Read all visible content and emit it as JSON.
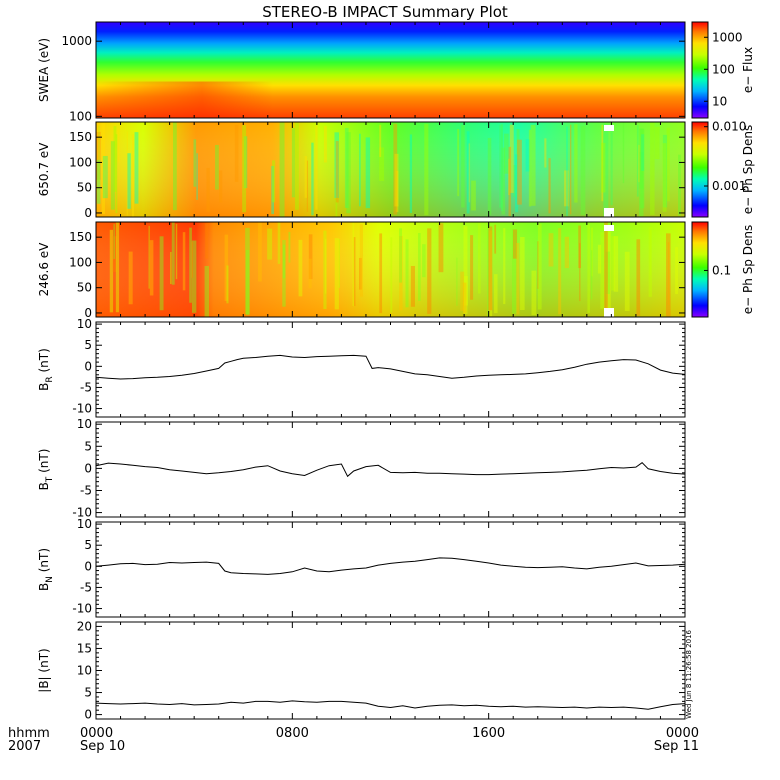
{
  "title": "STEREO-B IMPACT Summary Plot",
  "footer": {
    "hhmm": "hhmm",
    "year": "2007"
  },
  "timestamp": "Wed Jun  8 11:26:58 2016",
  "x_ticks": [
    {
      "hour": 0,
      "time": "0000",
      "date": "Sep 10"
    },
    {
      "hour": 8,
      "time": "0800",
      "date": ""
    },
    {
      "hour": 16,
      "time": "1600",
      "date": ""
    },
    {
      "hour": 24,
      "time": "0000",
      "date": "Sep 11"
    }
  ],
  "chart_data": [
    {
      "type": "heatmap",
      "id": "swea",
      "ylabel": "SWEA (eV)",
      "ylog": true,
      "ylim": [
        95,
        1800
      ],
      "yticks": [
        {
          "v": 100,
          "t": "100"
        },
        {
          "v": 1000,
          "t": "1000"
        }
      ],
      "colorbar": {
        "label": "e− Flux",
        "log": true,
        "range": [
          3,
          3000
        ],
        "ticks": [
          {
            "v": 10,
            "t": "10"
          },
          {
            "v": 100,
            "t": "100"
          },
          {
            "v": 1000,
            "t": "1000"
          }
        ]
      }
    },
    {
      "type": "heatmap",
      "id": "pad650",
      "ylabel": "650.7 eV",
      "ylim": [
        -8,
        180
      ],
      "yticks": [
        {
          "v": 0,
          "t": "0"
        },
        {
          "v": 50,
          "t": "50"
        },
        {
          "v": 100,
          "t": "100"
        },
        {
          "v": 150,
          "t": "150"
        }
      ],
      "colorbar": {
        "label": "e− Ph Sp Dens",
        "log": true,
        "range": [
          0.0003,
          0.012
        ],
        "ticks": [
          {
            "v": 0.001,
            "t": "0.001"
          },
          {
            "v": 0.01,
            "t": "0.010"
          }
        ]
      }
    },
    {
      "type": "heatmap",
      "id": "pad246",
      "ylabel": "246.6 eV",
      "ylim": [
        -8,
        180
      ],
      "yticks": [
        {
          "v": 0,
          "t": "0"
        },
        {
          "v": 50,
          "t": "50"
        },
        {
          "v": 100,
          "t": "100"
        },
        {
          "v": 150,
          "t": "150"
        }
      ],
      "colorbar": {
        "label": "e− Ph Sp Dens",
        "log": true,
        "range": [
          0.03,
          0.35
        ],
        "ticks": [
          {
            "v": 0.1,
            "t": "0.1"
          }
        ]
      }
    },
    {
      "type": "line",
      "id": "br",
      "ylabel": {
        "main": "B",
        "sub": "R",
        "unit": " (nT)"
      },
      "ylim": [
        -12,
        10.5
      ],
      "yticks": [
        -10,
        -5,
        0,
        5,
        10
      ],
      "x": [
        0,
        0.5,
        1,
        1.5,
        2,
        2.5,
        3,
        3.5,
        4,
        4.5,
        5,
        5.25,
        5.5,
        5.75,
        6,
        6.5,
        7,
        7.5,
        8,
        8.5,
        9,
        9.5,
        10,
        10.5,
        11,
        11.25,
        11.5,
        12,
        12.5,
        13,
        13.5,
        14,
        14.5,
        15,
        15.5,
        16,
        16.5,
        17,
        17.5,
        18,
        18.5,
        19,
        19.5,
        20,
        20.5,
        21,
        21.5,
        22,
        22.5,
        23,
        23.5,
        24
      ],
      "values": [
        -2.6,
        -2.8,
        -3.0,
        -2.9,
        -2.7,
        -2.6,
        -2.4,
        -2.1,
        -1.7,
        -1.1,
        -0.5,
        0.8,
        1.2,
        1.6,
        1.9,
        2.1,
        2.4,
        2.6,
        2.2,
        2.1,
        2.3,
        2.4,
        2.5,
        2.6,
        2.4,
        -0.5,
        -0.3,
        -0.6,
        -1.2,
        -1.8,
        -2.0,
        -2.4,
        -2.8,
        -2.6,
        -2.3,
        -2.1,
        -2.0,
        -1.9,
        -1.8,
        -1.5,
        -1.2,
        -0.8,
        -0.2,
        0.5,
        1.0,
        1.3,
        1.6,
        1.5,
        0.6,
        -0.9,
        -1.6,
        -1.9
      ]
    },
    {
      "type": "line",
      "id": "bt",
      "ylabel": {
        "main": "B",
        "sub": "T",
        "unit": " (nT)"
      },
      "ylim": [
        -11,
        10.5
      ],
      "yticks": [
        -10,
        -5,
        0,
        5,
        10
      ],
      "x": [
        0,
        0.5,
        1,
        1.5,
        2,
        2.5,
        3,
        3.5,
        4,
        4.5,
        5,
        5.5,
        6,
        6.5,
        7,
        7.5,
        8,
        8.5,
        9,
        9.5,
        10,
        10.25,
        10.5,
        11,
        11.5,
        12,
        12.5,
        13,
        13.5,
        14,
        14.5,
        15,
        15.5,
        16,
        16.5,
        17,
        17.5,
        18,
        18.5,
        19,
        19.5,
        20,
        20.5,
        21,
        21.5,
        22,
        22.25,
        22.5,
        23,
        23.5,
        24
      ],
      "values": [
        0.6,
        1.2,
        1.0,
        0.7,
        0.4,
        0.2,
        -0.3,
        -0.6,
        -0.9,
        -1.2,
        -1.0,
        -0.7,
        -0.3,
        0.3,
        0.6,
        -0.6,
        -1.2,
        -1.6,
        -0.4,
        0.6,
        1.0,
        -1.8,
        -0.6,
        0.4,
        0.7,
        -0.9,
        -1.0,
        -0.9,
        -1.1,
        -1.1,
        -1.2,
        -1.3,
        -1.4,
        -1.4,
        -1.3,
        -1.2,
        -1.1,
        -1.0,
        -0.9,
        -0.8,
        -0.6,
        -0.4,
        -0.1,
        0.2,
        0.1,
        0.3,
        1.3,
        -0.1,
        -0.7,
        -1.1,
        -1.3
      ]
    },
    {
      "type": "line",
      "id": "bn",
      "ylabel": {
        "main": "B",
        "sub": "N",
        "unit": " (nT)"
      },
      "ylim": [
        -12,
        10.5
      ],
      "yticks": [
        -10,
        -5,
        0,
        5,
        10
      ],
      "x": [
        0,
        0.5,
        1,
        1.5,
        2,
        2.5,
        3,
        3.5,
        4,
        4.5,
        5,
        5.25,
        5.5,
        6,
        6.5,
        7,
        7.5,
        8,
        8.5,
        9,
        9.5,
        10,
        10.5,
        11,
        11.5,
        12,
        12.5,
        13,
        13.5,
        14,
        14.5,
        15,
        15.5,
        16,
        16.5,
        17,
        17.5,
        18,
        18.5,
        19,
        19.5,
        20,
        20.5,
        21,
        21.5,
        22,
        22.5,
        23,
        23.5,
        24
      ],
      "values": [
        0.0,
        0.3,
        0.6,
        0.7,
        0.4,
        0.5,
        0.9,
        0.8,
        0.9,
        1.0,
        0.7,
        -1.1,
        -1.5,
        -1.7,
        -1.8,
        -1.9,
        -1.7,
        -1.3,
        -0.4,
        -1.1,
        -1.3,
        -0.9,
        -0.6,
        -0.4,
        0.3,
        0.7,
        1.0,
        1.2,
        1.6,
        2.0,
        1.9,
        1.6,
        1.2,
        0.8,
        0.3,
        0.0,
        -0.2,
        -0.3,
        -0.2,
        -0.1,
        -0.4,
        -0.6,
        -0.2,
        0.0,
        0.4,
        0.8,
        0.1,
        0.2,
        0.3,
        0.5
      ]
    },
    {
      "type": "line",
      "id": "bmag",
      "ylabel": {
        "main": "|B|",
        "sub": "",
        "unit": " (nT)"
      },
      "ylim": [
        -1,
        21
      ],
      "yticks": [
        0,
        5,
        10,
        15,
        20
      ],
      "x": [
        0,
        0.5,
        1,
        1.5,
        2,
        2.5,
        3,
        3.5,
        4,
        4.5,
        5,
        5.5,
        6,
        6.5,
        7,
        7.5,
        8,
        8.5,
        9,
        9.5,
        10,
        10.5,
        11,
        11.5,
        12,
        12.5,
        13,
        13.5,
        14,
        14.5,
        15,
        15.5,
        16,
        16.5,
        17,
        17.5,
        18,
        18.5,
        19,
        19.5,
        20,
        20.5,
        21,
        21.5,
        22,
        22.5,
        23,
        23.5,
        24
      ],
      "values": [
        2.6,
        2.5,
        2.4,
        2.5,
        2.6,
        2.4,
        2.3,
        2.5,
        2.2,
        2.3,
        2.4,
        2.8,
        2.6,
        3.0,
        3.0,
        2.8,
        3.1,
        2.9,
        2.8,
        3.0,
        3.0,
        2.8,
        2.6,
        1.9,
        1.6,
        2.0,
        1.5,
        1.9,
        2.1,
        2.2,
        2.0,
        2.1,
        1.9,
        1.8,
        1.9,
        1.7,
        1.8,
        1.7,
        1.6,
        1.7,
        1.5,
        1.7,
        1.6,
        1.7,
        1.5,
        1.2,
        1.8,
        2.3,
        2.5
      ]
    }
  ]
}
